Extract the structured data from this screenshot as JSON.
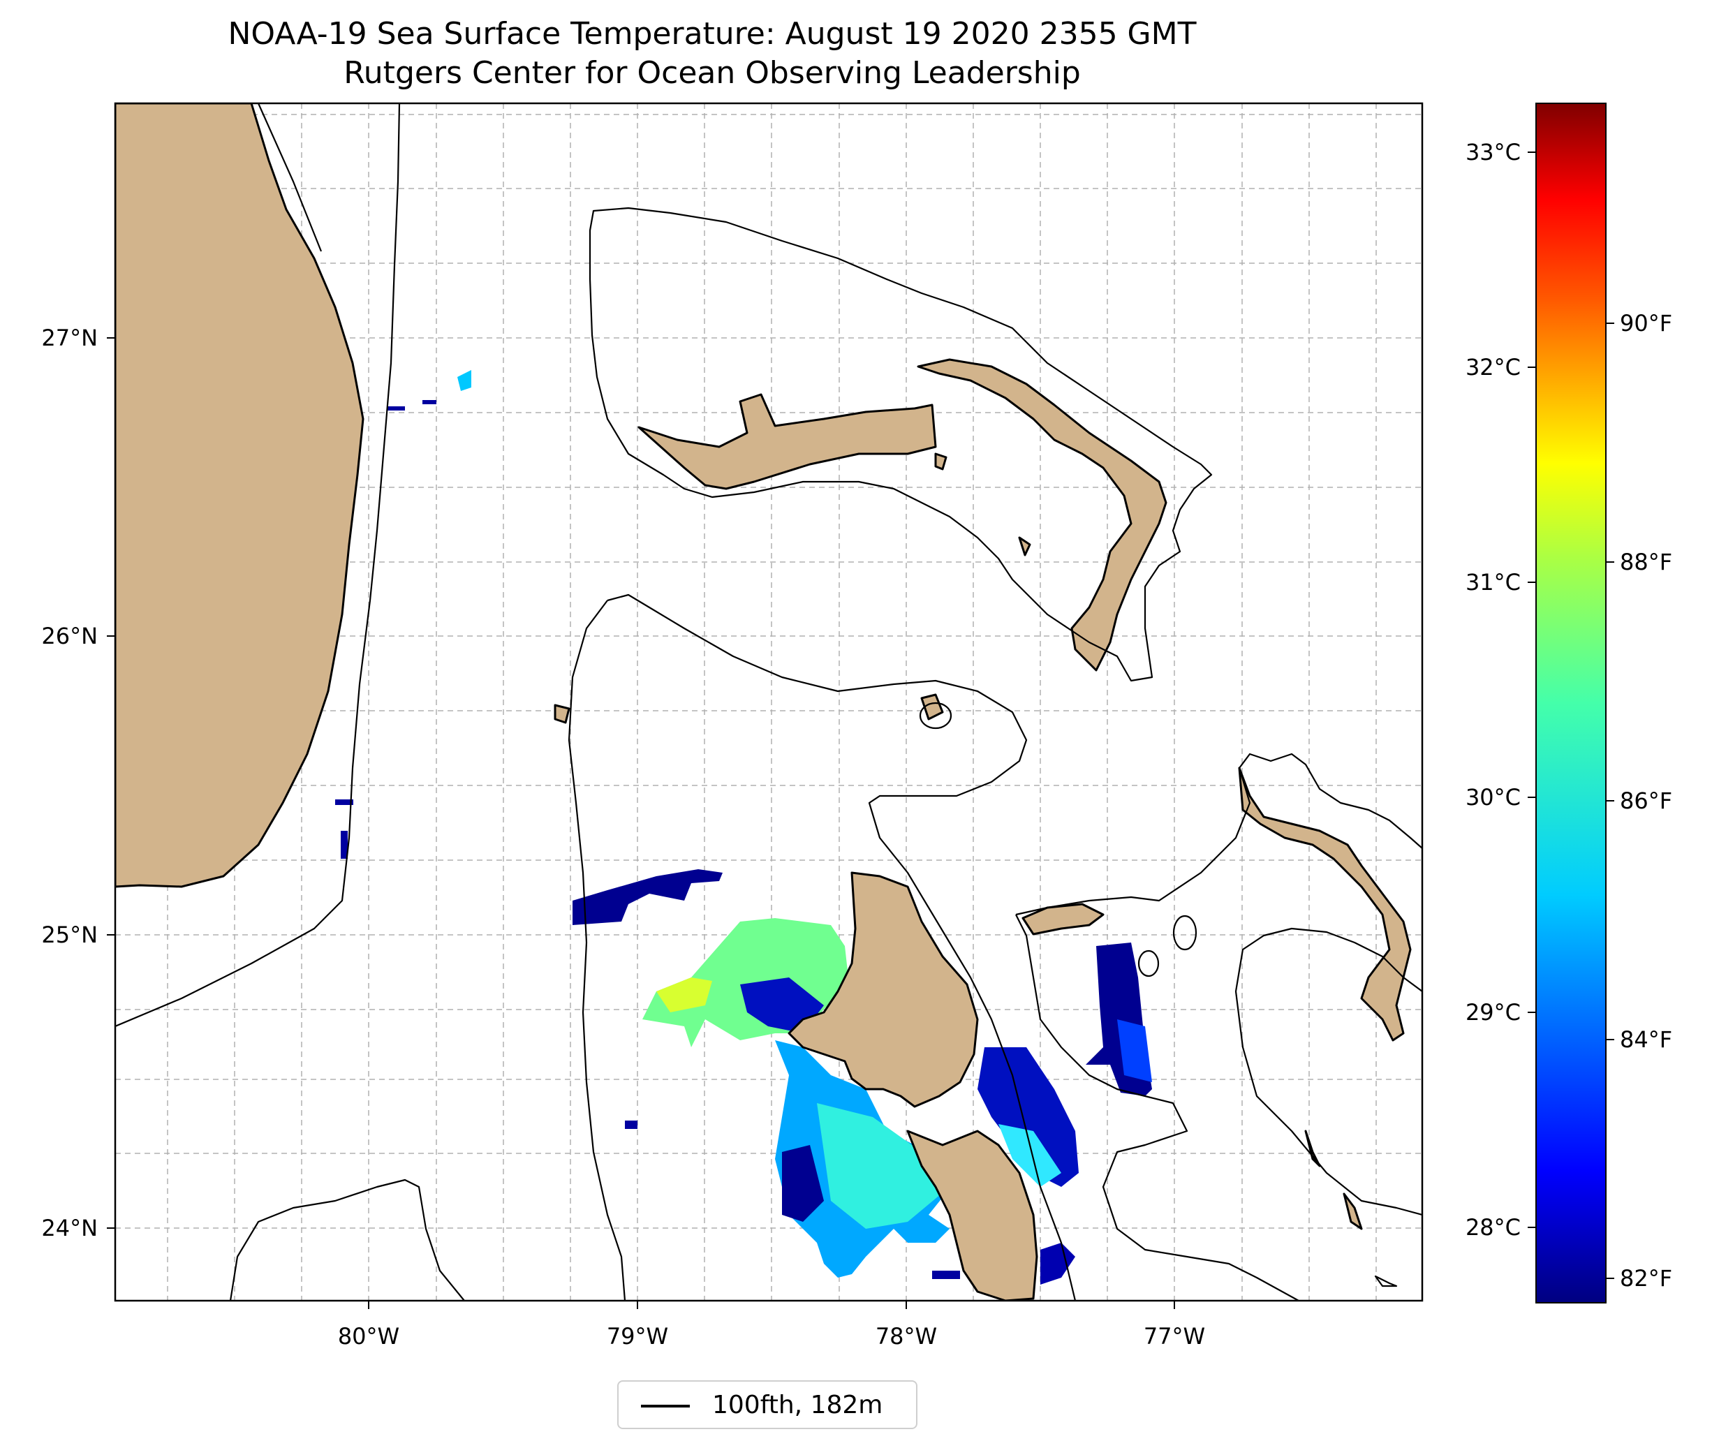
{
  "title": "NOAA-19 Sea Surface Temperature: August 19 2020 2355 GMT",
  "subtitle": "Rutgers Center for Ocean Observing Leadership",
  "map": {
    "lon_labels": [
      "80°W",
      "79°W",
      "78°W",
      "77°W"
    ],
    "lat_labels": [
      "27°N",
      "26°N",
      "25°N",
      "24°N"
    ],
    "land_color": "#d2b48c",
    "grid": true
  },
  "colorbar": {
    "celsius_labels": [
      "33°C",
      "32°C",
      "31°C",
      "30°C",
      "29°C",
      "28°C"
    ],
    "fahrenheit_labels": [
      "90°F",
      "88°F",
      "86°F",
      "84°F",
      "82°F"
    ],
    "colormap": "jet"
  },
  "legend": {
    "label": "100fth, 182m"
  },
  "chart_data": {
    "type": "heatmap",
    "title": "NOAA-19 Sea Surface Temperature: August 19 2020 2355 GMT",
    "subtitle": "Rutgers Center for Ocean Observing Leadership",
    "xlim": [
      -81.0,
      -76.1
    ],
    "ylim": [
      23.7,
      27.8
    ],
    "colorbar_range_c": [
      27.7,
      33.3
    ],
    "colorbar_range_f": [
      81.9,
      91.9
    ]
  }
}
